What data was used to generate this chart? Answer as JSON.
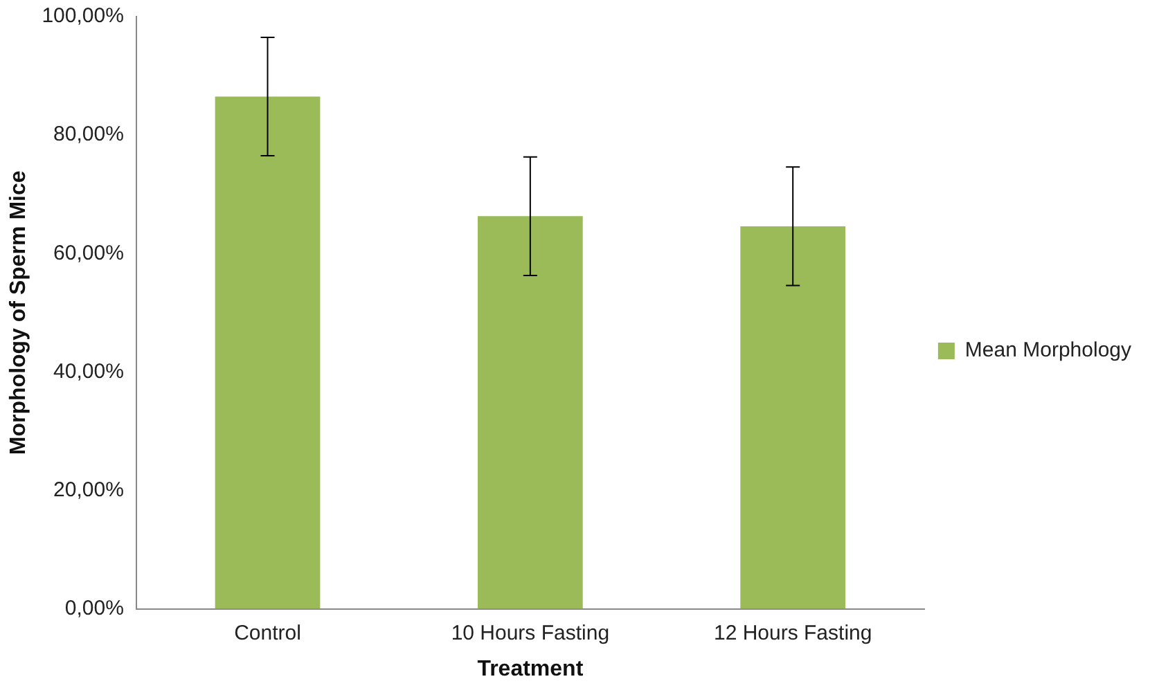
{
  "chart_data": {
    "type": "bar",
    "xlabel": "Treatment",
    "ylabel": "Morphology of Sperm Mice",
    "categories": [
      "Control",
      "10 Hours Fasting",
      "12 Hours Fasting"
    ],
    "series": [
      {
        "name": "Mean Morphology",
        "color": "#9bbb59",
        "values": [
          86.5,
          66.3,
          64.6
        ],
        "errors": [
          10,
          10,
          10
        ]
      }
    ],
    "ylim": [
      0,
      100
    ],
    "yticks": [
      {
        "value": 0,
        "label": "0,00%"
      },
      {
        "value": 20,
        "label": "20,00%"
      },
      {
        "value": 40,
        "label": "40,00%"
      },
      {
        "value": 60,
        "label": "60,00%"
      },
      {
        "value": 80,
        "label": "80,00%"
      },
      {
        "value": 100,
        "label": "100,00%"
      }
    ],
    "grid": false,
    "legend": "right"
  }
}
